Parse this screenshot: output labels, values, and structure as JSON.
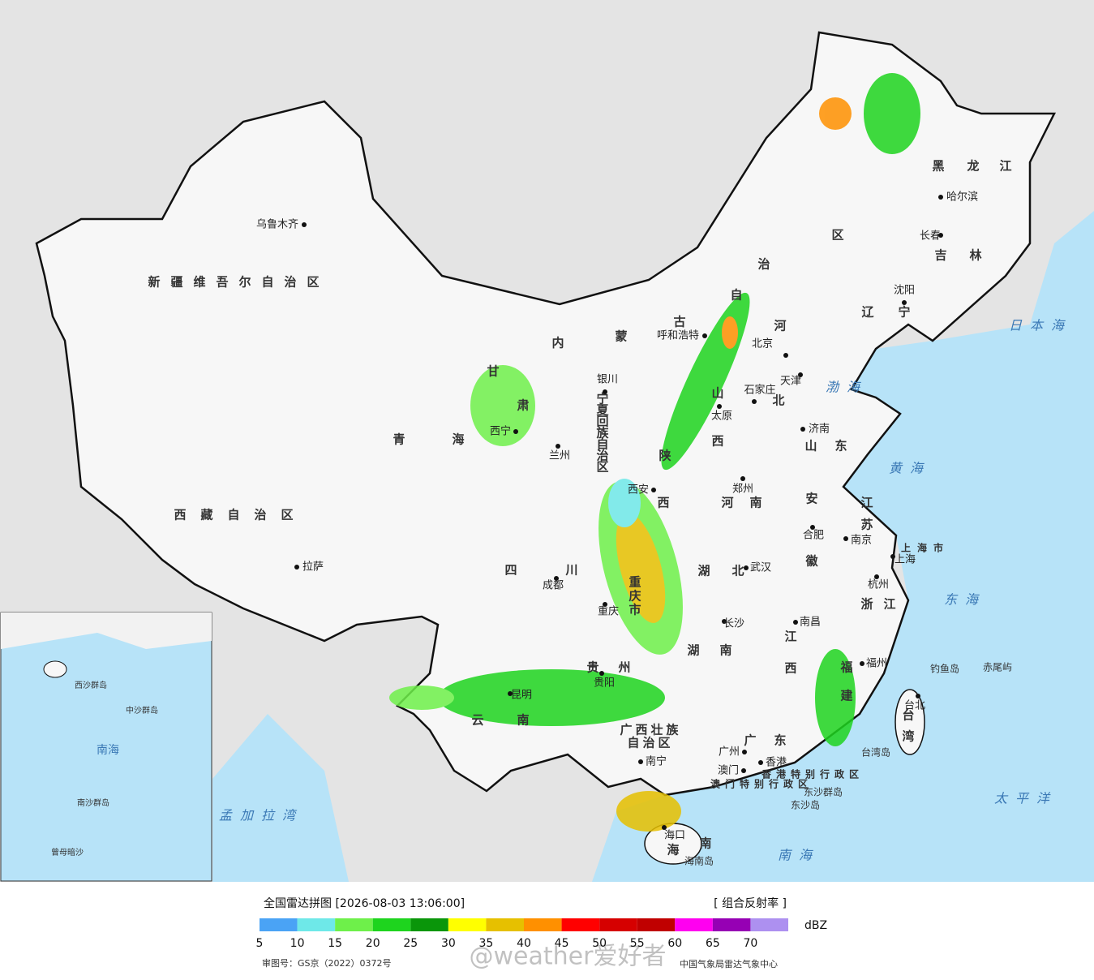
{
  "map": {
    "provinces": [
      "新疆维吾尔自治区",
      "西藏自治区",
      "青海",
      "甘肃",
      "内蒙古自治区",
      "黑龙江",
      "吉林",
      "辽宁",
      "河北",
      "山西",
      "陕西",
      "宁夏回族自治区",
      "山东",
      "河南",
      "江苏",
      "安徽",
      "湖北",
      "四川",
      "重庆市",
      "贵州",
      "云南",
      "湖南",
      "江西",
      "浙江",
      "福建",
      "广西壮族自治区",
      "广东",
      "台湾",
      "海南",
      "上海市",
      "香港特别行政区",
      "澳门特别行政区"
    ],
    "cities": [
      "乌鲁木齐",
      "拉萨",
      "西宁",
      "兰州",
      "银川",
      "呼和浩特",
      "北京",
      "天津",
      "石家庄",
      "太原",
      "济南",
      "西安",
      "郑州",
      "合肥",
      "南京",
      "上海",
      "杭州",
      "武汉",
      "成都",
      "重庆",
      "长沙",
      "南昌",
      "福州",
      "台北",
      "贵阳",
      "昆明",
      "南宁",
      "广州",
      "香港",
      "澳门",
      "海口",
      "沈阳",
      "长春",
      "哈尔滨"
    ],
    "seas": [
      "日本海",
      "渤海",
      "黄海",
      "东海",
      "太平洋",
      "南海",
      "孟加拉湾"
    ],
    "islands": [
      "钓鱼岛",
      "赤尾屿",
      "台湾岛",
      "东沙群岛",
      "东沙岛",
      "海南岛"
    ],
    "inset_labels": [
      "南海",
      "西沙群岛",
      "中沙群岛",
      "南沙群岛",
      "曾母暗沙"
    ]
  },
  "footer": {
    "title": "全国雷达拼图 [2026-08-03 13:06:00]",
    "product": "[ 组合反射率 ]",
    "unit": "dBZ",
    "legend": [
      {
        "value": 5,
        "color": "#4aa3f5"
      },
      {
        "value": 10,
        "color": "#6ee8e8"
      },
      {
        "value": 15,
        "color": "#6ef04a"
      },
      {
        "value": 20,
        "color": "#1ed41e"
      },
      {
        "value": 25,
        "color": "#0a960a"
      },
      {
        "value": 30,
        "color": "#ffff00"
      },
      {
        "value": 35,
        "color": "#e6c000"
      },
      {
        "value": 40,
        "color": "#ff9000"
      },
      {
        "value": 45,
        "color": "#ff0000"
      },
      {
        "value": 50,
        "color": "#d60000"
      },
      {
        "value": 55,
        "color": "#c00000"
      },
      {
        "value": 60,
        "color": "#ff00f0"
      },
      {
        "value": 65,
        "color": "#9600b4"
      },
      {
        "value": 70,
        "color": "#ad90f0"
      }
    ],
    "approval": "审图号：GS京（2022）0372号",
    "source": "中国气象局雷达气象中心",
    "watermark": "@weather爱好者"
  }
}
